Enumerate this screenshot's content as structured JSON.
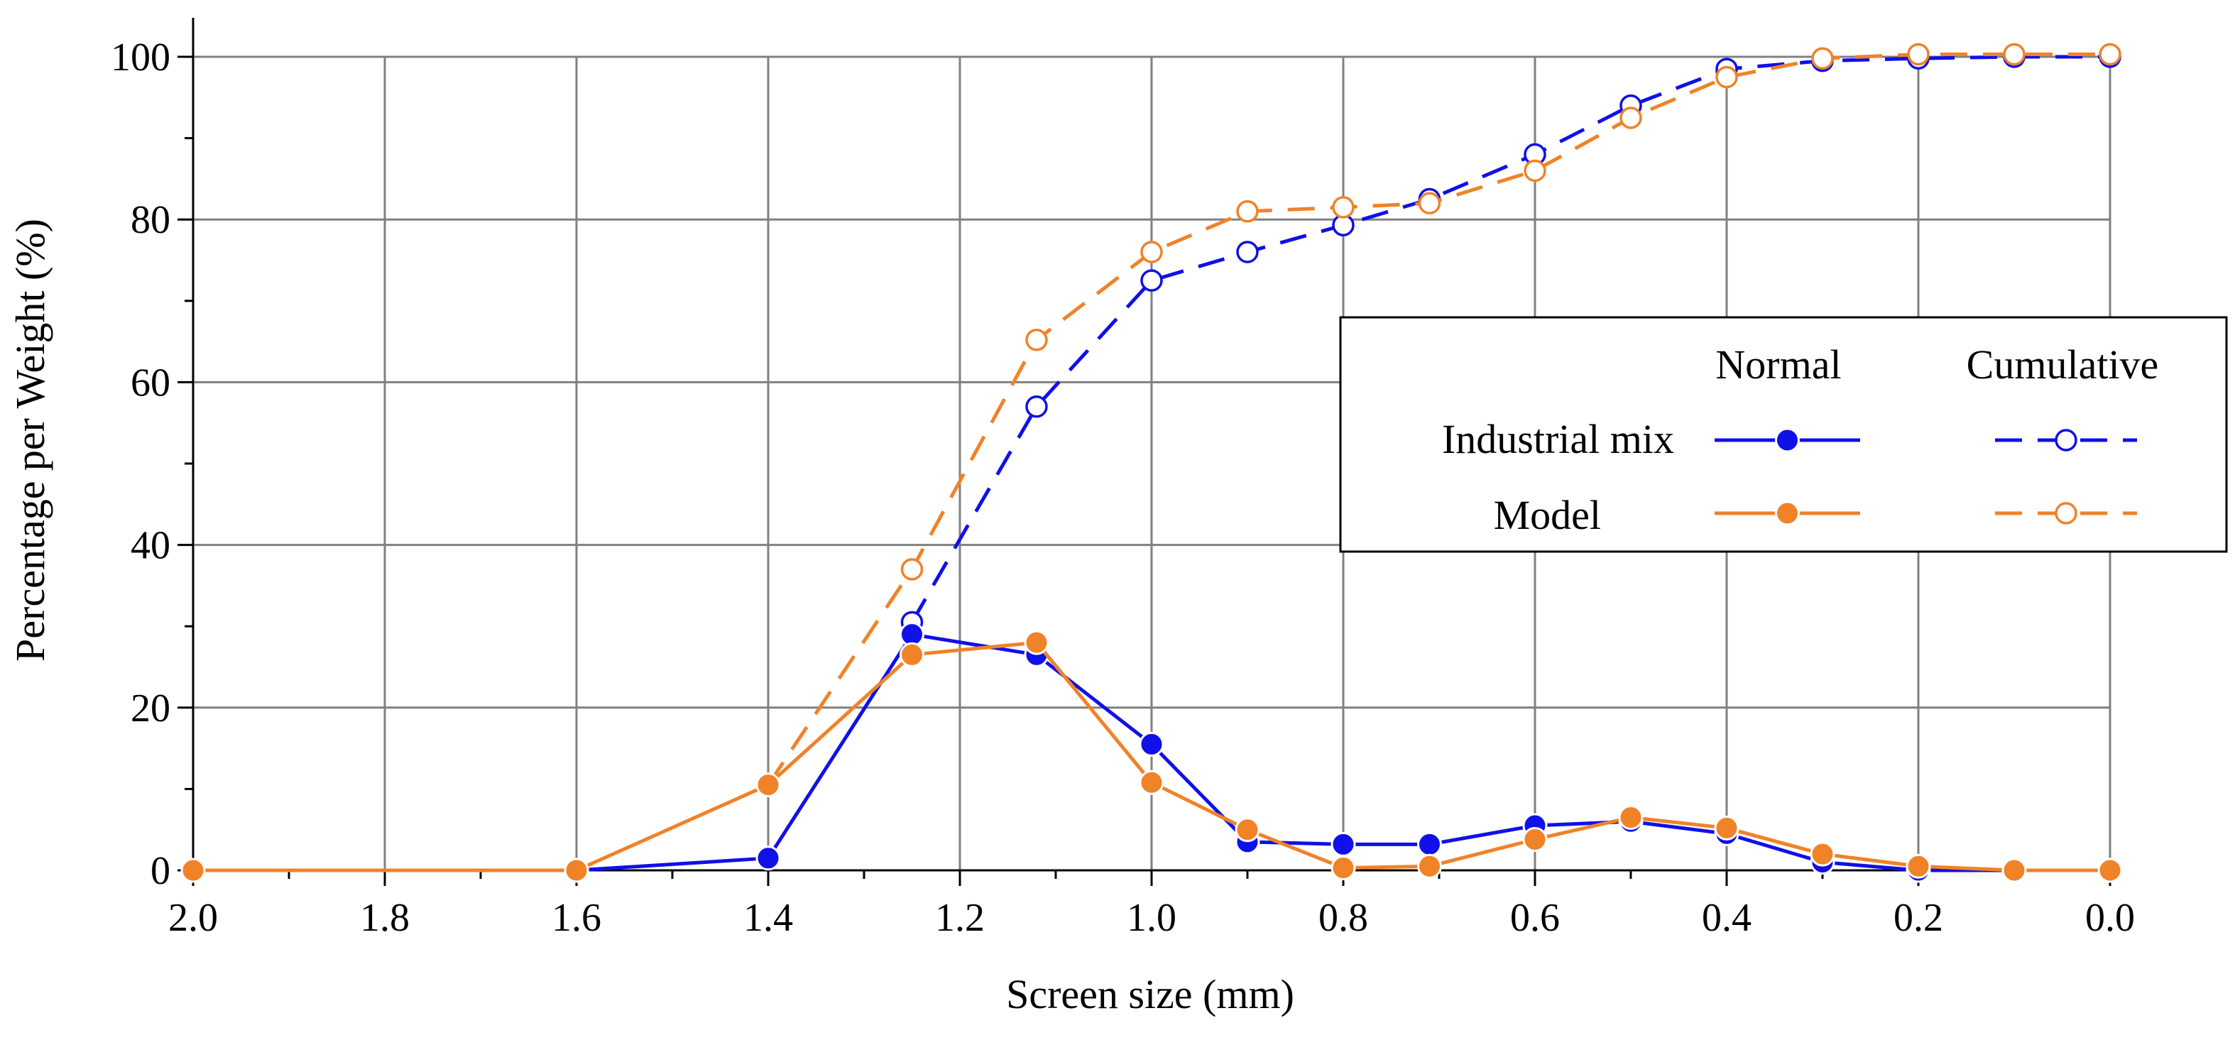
{
  "chart_data": {
    "type": "line",
    "xlabel": "Screen size (mm)",
    "ylabel": "Percentage per Weight (%)",
    "xlim": [
      2.0,
      0.0
    ],
    "ylim": [
      0,
      100
    ],
    "x_reversed": true,
    "grid": true,
    "xticks": [
      "2.0",
      "1.8",
      "1.6",
      "1.4",
      "1.2",
      "1.0",
      "0.8",
      "0.6",
      "0.4",
      "0.2",
      "0.0"
    ],
    "xtick_values": [
      2.0,
      1.8,
      1.6,
      1.4,
      1.2,
      1.0,
      0.8,
      0.6,
      0.4,
      0.2,
      0.0
    ],
    "yticks": [
      "0",
      "20",
      "40",
      "60",
      "80",
      "100"
    ],
    "ytick_values": [
      0,
      20,
      40,
      60,
      80,
      100
    ],
    "legend": {
      "placement": "right",
      "col_headers": [
        "Normal",
        "Cumulative"
      ],
      "row_labels": [
        "Industrial mix",
        "Model"
      ]
    },
    "series": [
      {
        "name": "Industrial mix (Normal)",
        "color": "#1010e8",
        "style": "solid",
        "marker": "filled",
        "x": [
          1.6,
          1.4,
          1.25,
          1.12,
          1.0,
          0.9,
          0.8,
          0.71,
          0.6,
          0.5,
          0.4,
          0.3,
          0.2,
          0.1,
          0.0
        ],
        "values": [
          0,
          1.5,
          29,
          26.5,
          15.5,
          3.5,
          3.2,
          3.2,
          5.5,
          6,
          4.5,
          1,
          0,
          0,
          0
        ]
      },
      {
        "name": "Model (Normal)",
        "color": "#f08228",
        "style": "solid",
        "marker": "filled",
        "x": [
          2.0,
          1.6,
          1.4,
          1.25,
          1.12,
          1.0,
          0.9,
          0.8,
          0.71,
          0.6,
          0.5,
          0.4,
          0.3,
          0.2,
          0.1,
          0.0
        ],
        "values": [
          0,
          0,
          10.5,
          26.5,
          28,
          10.8,
          5,
          0.3,
          0.5,
          3.8,
          6.5,
          5.2,
          2,
          0.5,
          0,
          0
        ]
      },
      {
        "name": "Industrial mix (Cumulative)",
        "color": "#1010e8",
        "style": "dashed",
        "marker": "open",
        "x": [
          1.25,
          1.12,
          1.0,
          0.9,
          0.8,
          0.71,
          0.6,
          0.5,
          0.4,
          0.3,
          0.2,
          0.1,
          0.0
        ],
        "values": [
          30.5,
          57,
          72.5,
          76,
          79.3,
          82.5,
          88,
          94,
          98.5,
          99.5,
          99.8,
          100,
          100
        ]
      },
      {
        "name": "Model (Cumulative)",
        "color": "#f08228",
        "style": "dashed",
        "marker": "open",
        "x": [
          1.4,
          1.25,
          1.12,
          1.0,
          0.9,
          0.8,
          0.71,
          0.6,
          0.5,
          0.4,
          0.3,
          0.2,
          0.1,
          0.0
        ],
        "values": [
          10.5,
          37,
          65.2,
          76,
          81,
          81.5,
          82,
          86,
          92.5,
          97.5,
          99.8,
          100.3,
          100.3,
          100.3
        ]
      }
    ]
  }
}
